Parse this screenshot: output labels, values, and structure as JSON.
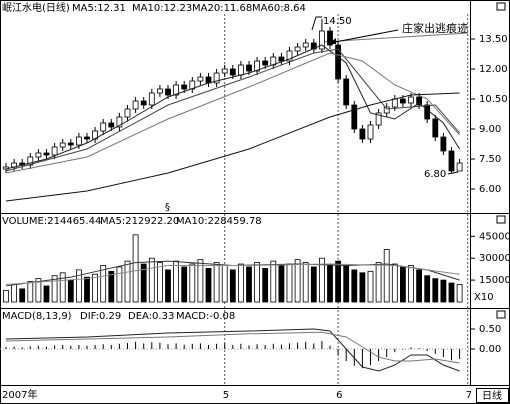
{
  "chart_data": [
    {
      "type": "candlestick",
      "title": "岷江水电(日线)",
      "open": [
        7.0,
        7.1,
        7.3,
        7.2,
        7.6,
        7.8,
        7.7,
        8.1,
        8.3,
        8.2,
        8.6,
        8.5,
        8.9,
        9.3,
        9.1,
        9.6,
        10.0,
        10.4,
        10.2,
        10.8,
        11.0,
        10.7,
        11.2,
        11.0,
        11.4,
        11.6,
        11.3,
        11.8,
        12.0,
        11.7,
        12.2,
        11.9,
        12.4,
        12.2,
        12.6,
        12.4,
        12.9,
        13.1,
        13.3,
        13.0,
        13.9,
        13.2,
        11.5,
        10.2,
        9.0,
        8.5,
        9.2,
        9.8,
        10.1,
        10.5,
        10.3,
        10.6,
        10.2,
        9.5,
        8.6,
        7.9,
        6.9
      ],
      "high": [
        7.3,
        7.5,
        7.5,
        7.8,
        8.0,
        8.0,
        8.3,
        8.5,
        8.5,
        8.8,
        8.8,
        9.1,
        9.5,
        9.5,
        9.8,
        10.2,
        10.6,
        10.6,
        11.0,
        11.2,
        11.2,
        11.4,
        11.4,
        11.6,
        11.8,
        11.8,
        12.0,
        12.2,
        12.2,
        12.4,
        12.4,
        12.6,
        12.6,
        12.8,
        12.8,
        13.1,
        13.3,
        13.5,
        13.5,
        14.5,
        14.1,
        13.4,
        11.7,
        10.4,
        9.2,
        9.4,
        10.0,
        10.3,
        10.7,
        10.7,
        10.8,
        10.8,
        10.4,
        9.7,
        8.8,
        8.1,
        7.5
      ],
      "low": [
        6.8,
        6.9,
        7.0,
        7.0,
        7.4,
        7.5,
        7.5,
        7.9,
        8.0,
        8.0,
        8.3,
        8.3,
        8.7,
        8.9,
        8.9,
        9.4,
        9.8,
        10.0,
        10.0,
        10.6,
        10.5,
        10.5,
        10.8,
        10.8,
        11.2,
        11.1,
        11.1,
        11.6,
        11.5,
        11.5,
        11.7,
        11.7,
        12.0,
        12.0,
        12.2,
        12.2,
        12.7,
        12.9,
        12.8,
        12.8,
        13.0,
        11.3,
        10.0,
        8.8,
        8.3,
        8.3,
        9.0,
        9.6,
        9.9,
        10.1,
        10.1,
        10.0,
        9.3,
        8.4,
        7.7,
        6.8,
        6.9
      ],
      "close": [
        7.1,
        7.3,
        7.2,
        7.6,
        7.8,
        7.7,
        8.1,
        8.3,
        8.2,
        8.6,
        8.5,
        8.9,
        9.3,
        9.1,
        9.6,
        10.0,
        10.4,
        10.2,
        10.8,
        11.0,
        10.7,
        11.2,
        11.0,
        11.4,
        11.6,
        11.3,
        11.8,
        12.0,
        11.7,
        12.2,
        11.9,
        12.4,
        12.2,
        12.6,
        12.4,
        12.9,
        13.1,
        13.3,
        13.0,
        13.9,
        13.2,
        11.5,
        10.2,
        9.0,
        8.5,
        9.2,
        9.8,
        10.1,
        10.5,
        10.3,
        10.6,
        10.2,
        9.5,
        8.6,
        7.9,
        6.9,
        7.3
      ],
      "series": [
        {
          "name": "MA5:12.31",
          "color": "#222222",
          "x": [
            0,
            5,
            10,
            15,
            20,
            25,
            30,
            35,
            39,
            42,
            45,
            48,
            51,
            54,
            56
          ],
          "values": [
            7.0,
            7.5,
            8.3,
            9.4,
            10.6,
            11.3,
            11.8,
            12.5,
            13.2,
            12.3,
            9.8,
            9.5,
            10.3,
            9.3,
            8.0
          ]
        },
        {
          "name": "MA10:12.23",
          "color": "#444444",
          "x": [
            0,
            10,
            20,
            30,
            38,
            41,
            44,
            47,
            50,
            53,
            56
          ],
          "values": [
            6.9,
            8.0,
            10.2,
            11.6,
            12.8,
            13.0,
            11.5,
            10.0,
            10.1,
            10.2,
            8.8
          ]
        },
        {
          "name": "MA20:11.68",
          "color": "#777777",
          "x": [
            0,
            10,
            20,
            30,
            40,
            44,
            48,
            52,
            56
          ],
          "values": [
            6.8,
            7.6,
            9.5,
            11.1,
            12.8,
            12.4,
            11.2,
            10.5,
            8.7
          ]
        },
        {
          "name": "MA60:8.64",
          "color": "#111111",
          "x": [
            0,
            10,
            20,
            30,
            40,
            45,
            50,
            56
          ],
          "values": [
            5.4,
            5.9,
            6.8,
            8.0,
            9.6,
            10.2,
            10.7,
            10.8
          ]
        }
      ],
      "ylim": [
        5.15,
        14.75
      ],
      "yticks": [
        {
          "value": 6,
          "label": "6.00"
        },
        {
          "value": 7.5,
          "label": "7.50"
        },
        {
          "value": 9,
          "label": "9.00"
        },
        {
          "value": 10.5,
          "label": "10.50"
        },
        {
          "value": 12,
          "label": "12.00"
        },
        {
          "value": 13.5,
          "label": "13.50"
        }
      ],
      "annotations": [
        "14.50",
        "庄家出逃痕迹",
        "6.80",
        "§"
      ]
    },
    {
      "type": "bar",
      "title": "VOLUME:214465.44",
      "values": [
        8000,
        12000,
        9000,
        14000,
        16000,
        11000,
        18000,
        20000,
        15000,
        22000,
        17000,
        19000,
        25000,
        21000,
        24000,
        28000,
        46000,
        26000,
        30000,
        27000,
        22000,
        28000,
        24000,
        26000,
        29000,
        23000,
        27000,
        25000,
        22000,
        26000,
        24000,
        27000,
        23000,
        28000,
        25000,
        26000,
        29000,
        27000,
        24000,
        30000,
        26000,
        28000,
        25000,
        22000,
        20000,
        21000,
        27000,
        36000,
        26000,
        24000,
        25000,
        22000,
        18000,
        16000,
        15000,
        13000,
        12000
      ],
      "series": [
        {
          "name": "MA5:212922.20",
          "color": "#333333",
          "x": [
            0,
            8,
            16,
            20,
            28,
            36,
            42,
            47,
            52,
            56
          ],
          "values": [
            11000,
            17000,
            27000,
            28000,
            25000,
            26000,
            25000,
            26000,
            22000,
            15000
          ]
        },
        {
          "name": "MA10:228459.78",
          "color": "#888888",
          "x": [
            0,
            10,
            20,
            30,
            40,
            48,
            56
          ],
          "values": [
            12000,
            16000,
            25000,
            25000,
            26000,
            25000,
            19000
          ]
        }
      ],
      "ylim": [
        0,
        50000
      ],
      "yticks": [
        15000,
        30000,
        45000
      ],
      "unit_label": "X10"
    },
    {
      "type": "macd",
      "title": "MACD(8,13,9)",
      "histogram_label": "MACD:-0.08",
      "values": [
        0.05,
        0.06,
        0.04,
        0.07,
        0.08,
        0.06,
        0.09,
        0.1,
        0.08,
        0.1,
        0.08,
        0.1,
        0.12,
        0.1,
        0.13,
        0.15,
        0.18,
        0.14,
        0.17,
        0.16,
        0.12,
        0.14,
        0.11,
        0.13,
        0.14,
        0.1,
        0.13,
        0.14,
        0.1,
        0.13,
        0.09,
        0.12,
        0.1,
        0.13,
        0.11,
        0.14,
        0.16,
        0.18,
        0.14,
        0.2,
        0.08,
        -0.15,
        -0.3,
        -0.42,
        -0.48,
        -0.4,
        -0.3,
        -0.2,
        -0.08,
        -0.02,
        0.04,
        0.02,
        -0.05,
        -0.12,
        -0.2,
        -0.28,
        -0.25
      ],
      "series": [
        {
          "name": "DIF:0.29",
          "color": "#222222",
          "x": [
            0,
            10,
            20,
            30,
            38,
            40,
            42,
            44,
            46,
            48,
            50,
            52,
            54,
            56
          ],
          "values": [
            0.25,
            0.3,
            0.4,
            0.45,
            0.5,
            0.45,
            0.0,
            -0.45,
            -0.55,
            -0.4,
            -0.15,
            -0.15,
            -0.4,
            -0.55
          ]
        },
        {
          "name": "DEA:0.33",
          "color": "#777777",
          "x": [
            0,
            10,
            20,
            30,
            39,
            42,
            44,
            46,
            48,
            50,
            53,
            56
          ],
          "values": [
            0.2,
            0.25,
            0.3,
            0.38,
            0.42,
            0.3,
            0.05,
            -0.2,
            -0.3,
            -0.3,
            -0.25,
            -0.35
          ]
        }
      ],
      "ylim": [
        -0.85,
        0.675
      ],
      "yticks": [
        {
          "value": 0,
          "label": "0.00"
        },
        {
          "value": 0.5,
          "label": "0.50"
        }
      ],
      "x_labels": [
        {
          "index": 0,
          "label": "2007年"
        },
        {
          "index": 27,
          "label": "5"
        },
        {
          "index": 41,
          "label": "6"
        },
        {
          "index": 57,
          "label": "7"
        }
      ],
      "period_label": "日线"
    }
  ]
}
